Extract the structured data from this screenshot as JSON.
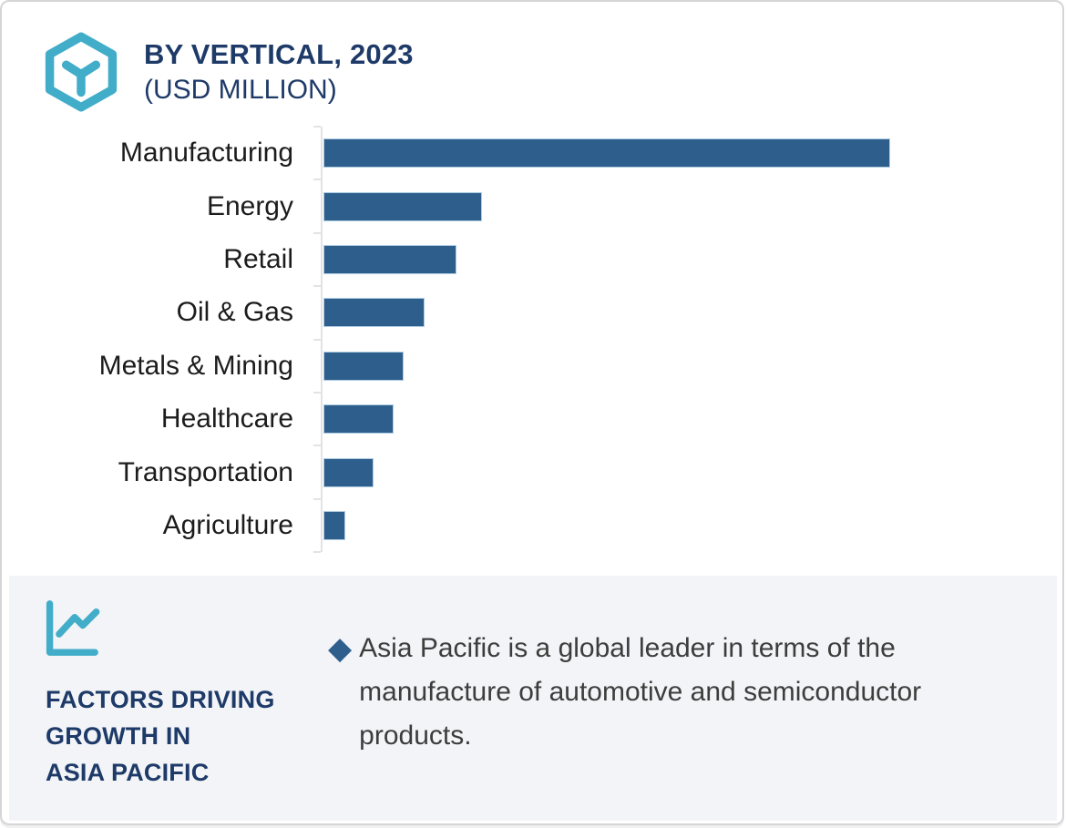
{
  "header": {
    "icon": "cube-hexagon-icon",
    "title": "BY VERTICAL, 2023",
    "subtitle": "(USD MILLION)"
  },
  "chart_data": {
    "type": "bar",
    "orientation": "horizontal",
    "title": "BY VERTICAL, 2023 (USD MILLION)",
    "categories": [
      "Manufacturing",
      "Energy",
      "Retail",
      "Oil & Gas",
      "Metals & Mining",
      "Healthcare",
      "Transportation",
      "Agriculture"
    ],
    "values": [
      100,
      27.9,
      23.4,
      17.8,
      14.1,
      12.4,
      8.9,
      3.8
    ],
    "values_note": "relative bar lengths as % of longest bar; numeric axis not labeled in image",
    "xlabel": "",
    "ylabel": "",
    "grid": false,
    "value_labels": false,
    "legend": false,
    "bar_color": "#2e5f8c",
    "bar_border_color": "#aecbe2",
    "axis_color": "#e3e3e5"
  },
  "footer": {
    "icon": "line-chart-icon",
    "heading": "FACTORS DRIVING\nGROWTH IN\nASIA PACIFIC",
    "bullet_marker": "◆",
    "bullet_text": "Asia Pacific is a global leader in terms of the\nmanufacture of automotive and semiconductor\nproducts.",
    "background": "#f2f4f7"
  },
  "colors": {
    "accent_teal": "#41adc9",
    "navy": "#1e3a68",
    "bar_blue": "#2e5f8c",
    "body_text": "#3d3d3d",
    "card_border": "#d5d5d8"
  }
}
